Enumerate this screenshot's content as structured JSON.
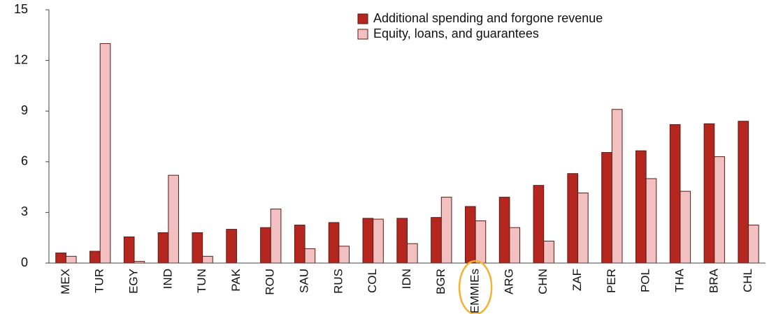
{
  "chart_data": {
    "type": "bar",
    "categories": [
      "MEX",
      "TUR",
      "EGY",
      "IND",
      "TUN",
      "PAK",
      "ROU",
      "SAU",
      "RUS",
      "COL",
      "IDN",
      "BGR",
      "EMMIEs",
      "ARG",
      "CHN",
      "ZAF",
      "PER",
      "POL",
      "THA",
      "BRA",
      "CHL"
    ],
    "series": [
      {
        "name": "Additional spending and forgone revenue",
        "color": "#b5271e",
        "values": [
          0.6,
          0.7,
          1.55,
          1.8,
          1.8,
          2.0,
          2.1,
          2.25,
          2.4,
          2.65,
          2.65,
          2.7,
          3.35,
          3.9,
          4.6,
          5.3,
          6.55,
          6.65,
          8.2,
          8.25,
          8.4
        ]
      },
      {
        "name": "Equity, loans, and guarantees",
        "color": "#f2c0c0",
        "values": [
          0.4,
          13.0,
          0.1,
          5.2,
          0.4,
          null,
          3.2,
          0.85,
          1.0,
          2.6,
          1.15,
          3.9,
          2.5,
          2.1,
          1.3,
          4.15,
          9.1,
          5.0,
          4.25,
          6.3,
          2.25
        ]
      }
    ],
    "ylim": [
      0,
      15
    ],
    "yticks": [
      0,
      3,
      6,
      9,
      12,
      15
    ],
    "legend": "top-right"
  }
}
